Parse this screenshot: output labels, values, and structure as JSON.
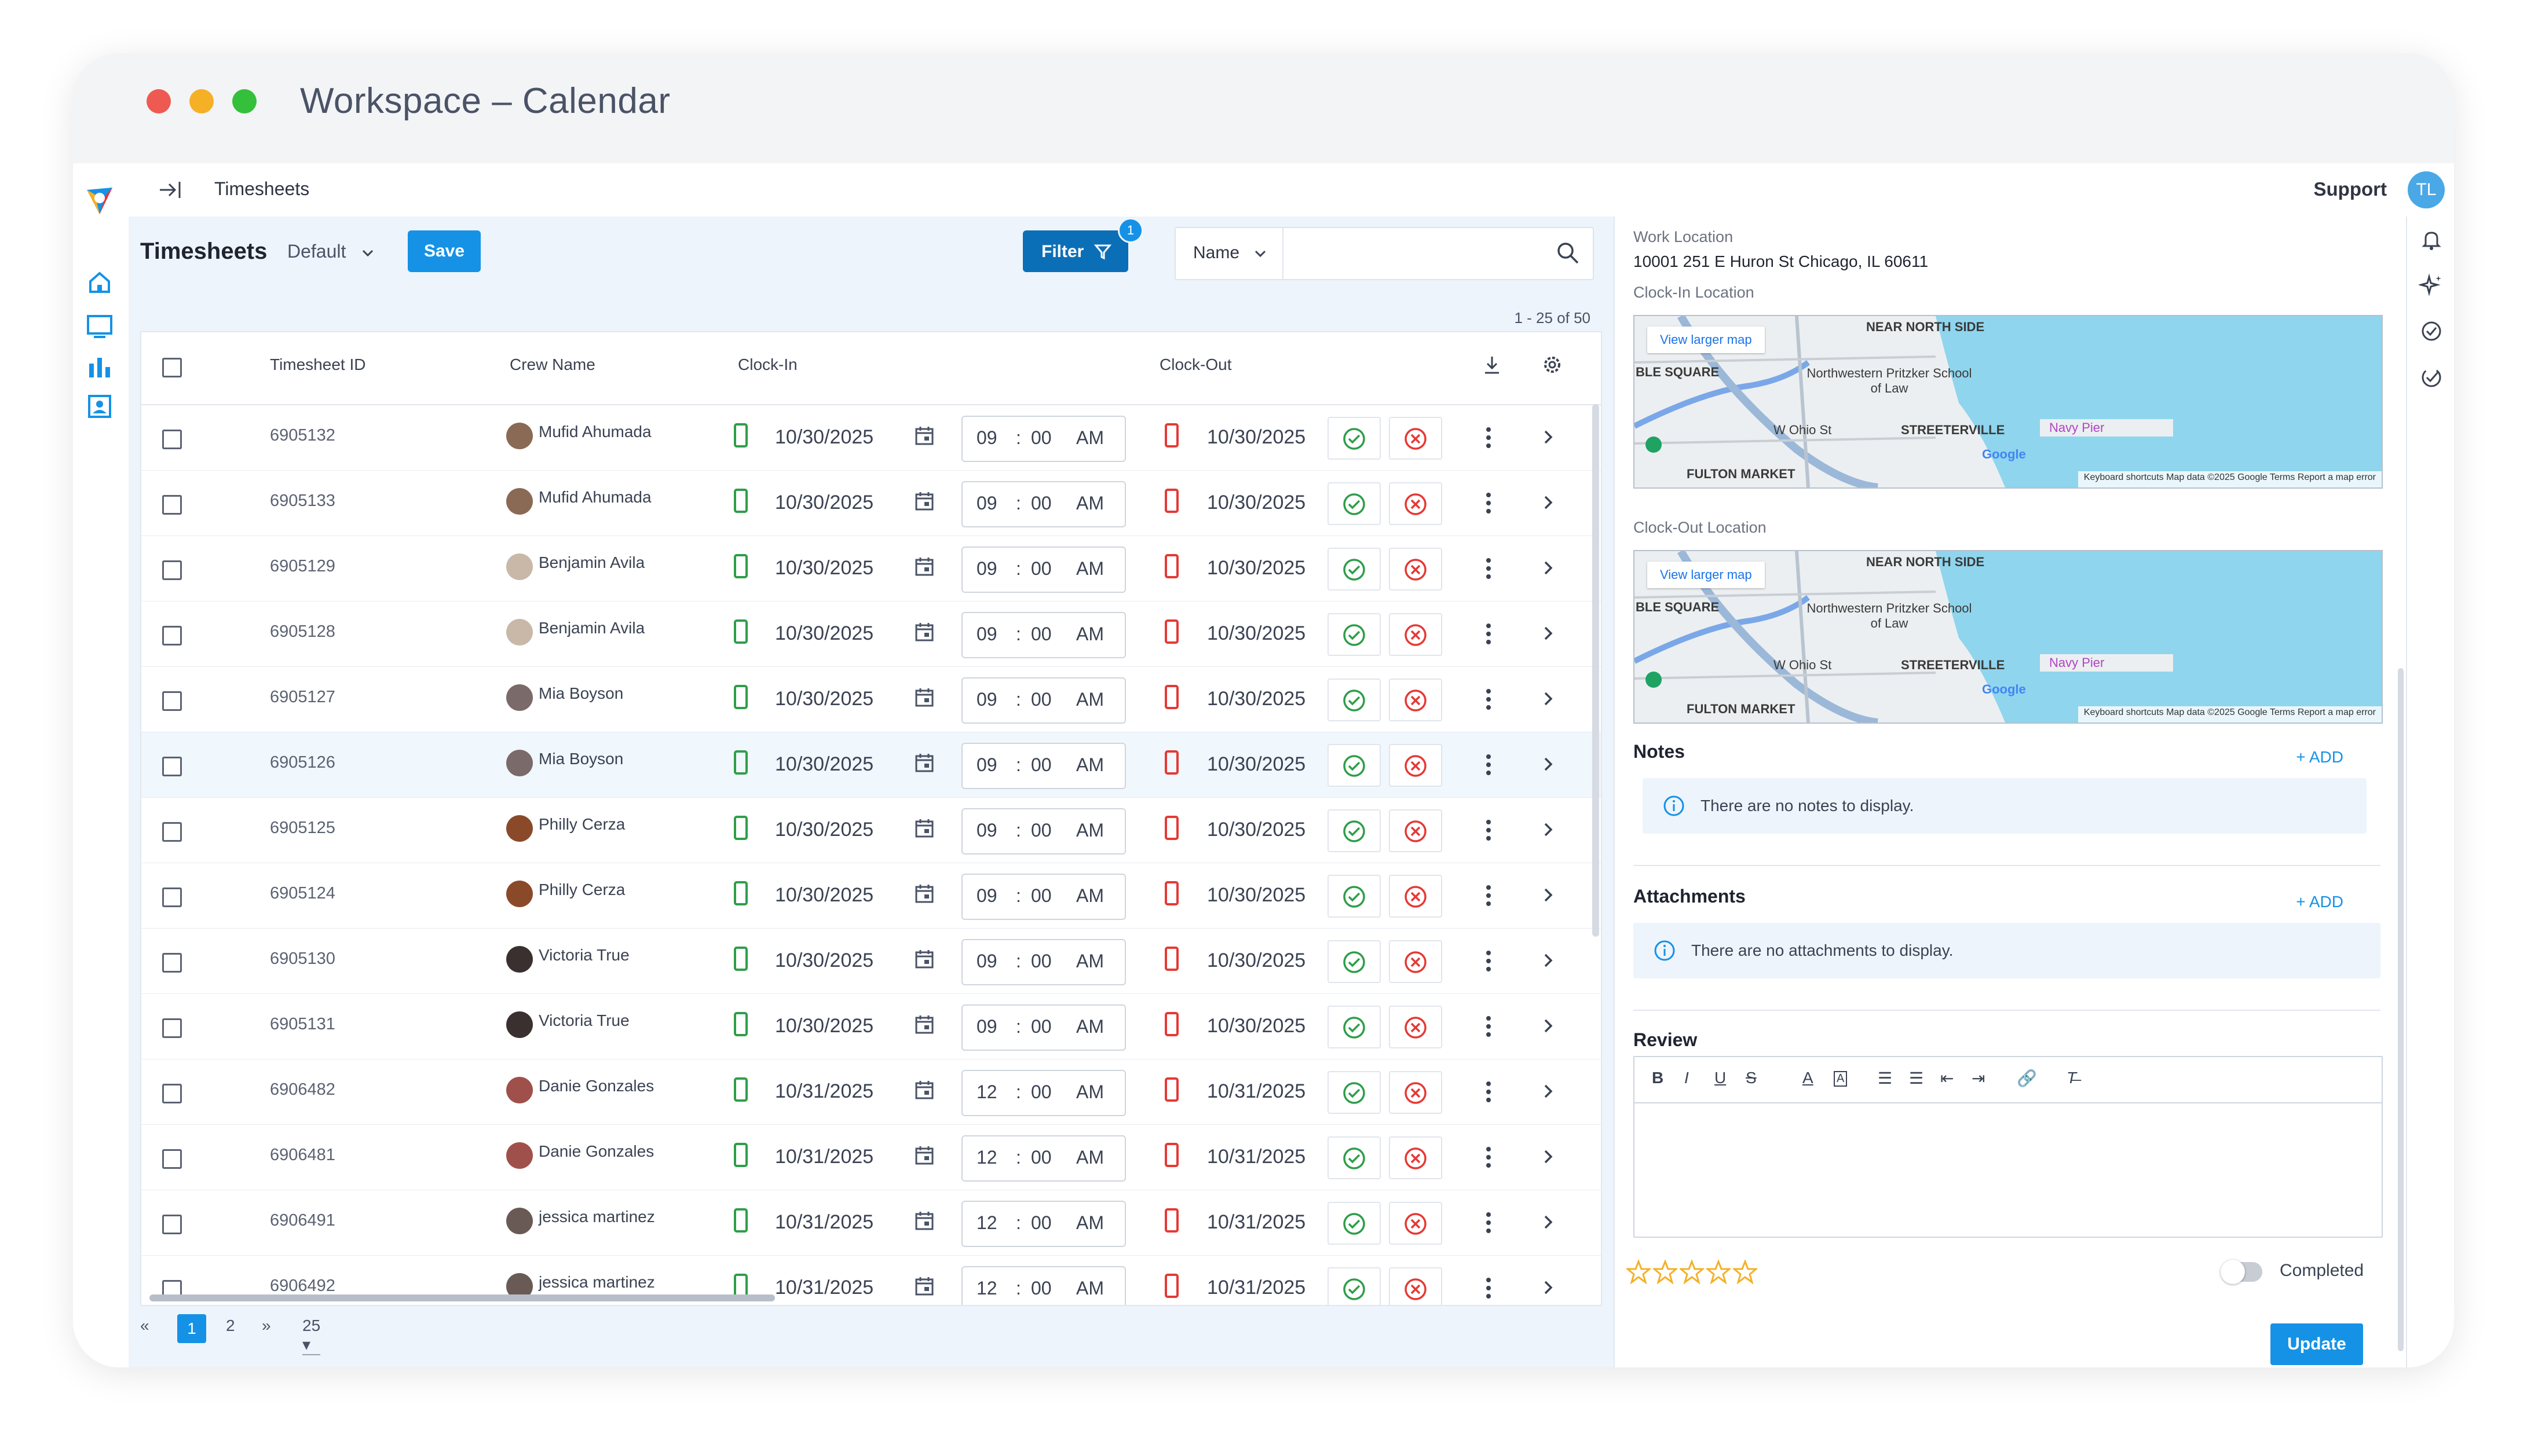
{
  "window": {
    "title": "Workspace – Calendar"
  },
  "topbar": {
    "breadcrumb": "Timesheets",
    "support": "Support",
    "avatar_initials": "TL"
  },
  "toolbar": {
    "title": "Timesheets",
    "view": "Default",
    "save_label": "Save",
    "filter_label": "Filter",
    "filter_count": "1",
    "search_field": "Name",
    "search_placeholder": "",
    "range_text": "1 - 25 of 50"
  },
  "table": {
    "headers": {
      "id": "Timesheet ID",
      "crew": "Crew Name",
      "clock_in": "Clock-In",
      "clock_out": "Clock-Out"
    },
    "rows": [
      {
        "id": "6905132",
        "crew": "Mufid Ahumada",
        "in_date": "10/30/2025",
        "hh": "09",
        "mm": "00",
        "ampm": "AM",
        "out_date": "10/30/2025",
        "av": "#8a6a55"
      },
      {
        "id": "6905133",
        "crew": "Mufid Ahumada",
        "in_date": "10/30/2025",
        "hh": "09",
        "mm": "00",
        "ampm": "AM",
        "out_date": "10/30/2025",
        "av": "#8a6a55"
      },
      {
        "id": "6905129",
        "crew": "Benjamin Avila",
        "in_date": "10/30/2025",
        "hh": "09",
        "mm": "00",
        "ampm": "AM",
        "out_date": "10/30/2025",
        "av": "#c9b8a8"
      },
      {
        "id": "6905128",
        "crew": "Benjamin Avila",
        "in_date": "10/30/2025",
        "hh": "09",
        "mm": "00",
        "ampm": "AM",
        "out_date": "10/30/2025",
        "av": "#c9b8a8"
      },
      {
        "id": "6905127",
        "crew": "Mia Boyson",
        "in_date": "10/30/2025",
        "hh": "09",
        "mm": "00",
        "ampm": "AM",
        "out_date": "10/30/2025",
        "av": "#7b6a6a"
      },
      {
        "id": "6905126",
        "crew": "Mia Boyson",
        "in_date": "10/30/2025",
        "hh": "09",
        "mm": "00",
        "ampm": "AM",
        "out_date": "10/30/2025",
        "av": "#7b6a6a"
      },
      {
        "id": "6905125",
        "crew": "Philly Cerza",
        "in_date": "10/30/2025",
        "hh": "09",
        "mm": "00",
        "ampm": "AM",
        "out_date": "10/30/2025",
        "av": "#8a4a2a"
      },
      {
        "id": "6905124",
        "crew": "Philly Cerza",
        "in_date": "10/30/2025",
        "hh": "09",
        "mm": "00",
        "ampm": "AM",
        "out_date": "10/30/2025",
        "av": "#8a4a2a"
      },
      {
        "id": "6905130",
        "crew": "Victoria True",
        "in_date": "10/30/2025",
        "hh": "09",
        "mm": "00",
        "ampm": "AM",
        "out_date": "10/30/2025",
        "av": "#3a3030"
      },
      {
        "id": "6905131",
        "crew": "Victoria True",
        "in_date": "10/30/2025",
        "hh": "09",
        "mm": "00",
        "ampm": "AM",
        "out_date": "10/30/2025",
        "av": "#3a3030"
      },
      {
        "id": "6906482",
        "crew": "Danie Gonzales",
        "in_date": "10/31/2025",
        "hh": "12",
        "mm": "00",
        "ampm": "AM",
        "out_date": "10/31/2025",
        "av": "#a0504a"
      },
      {
        "id": "6906481",
        "crew": "Danie Gonzales",
        "in_date": "10/31/2025",
        "hh": "12",
        "mm": "00",
        "ampm": "AM",
        "out_date": "10/31/2025",
        "av": "#a0504a"
      },
      {
        "id": "6906491",
        "crew": "jessica martinez",
        "in_date": "10/31/2025",
        "hh": "12",
        "mm": "00",
        "ampm": "AM",
        "out_date": "10/31/2025",
        "av": "#6a5a55"
      },
      {
        "id": "6906492",
        "crew": "jessica martinez",
        "in_date": "10/31/2025",
        "hh": "12",
        "mm": "00",
        "ampm": "AM",
        "out_date": "10/31/2025",
        "av": "#6a5a55"
      }
    ]
  },
  "pagination": {
    "current": "1",
    "next": "2",
    "page_size": "25"
  },
  "details": {
    "work_location_label": "Work Location",
    "work_location": "10001 251 E Huron St Chicago, IL 60611",
    "clock_in_label": "Clock-In Location",
    "clock_out_label": "Clock-Out Location",
    "map": {
      "link": "View larger map",
      "labels": [
        "NEAR NORTH SIDE",
        "BLE SQUARE",
        "Northwestern Pritzker School of Law",
        "W Ohio St",
        "STREETERVILLE",
        "Navy Pier",
        "FULTON MARKET",
        "Google"
      ],
      "footer": "Keyboard shortcuts   Map data ©2025 Google   Terms   Report a map error"
    },
    "notes_title": "Notes",
    "notes_add": "ADD",
    "notes_empty": "There are no notes to display.",
    "attachments_title": "Attachments",
    "attachments_add": "ADD",
    "attachments_empty": "There are no attachments to display.",
    "review_title": "Review",
    "completed_label": "Completed",
    "update_label": "Update"
  },
  "colors": {
    "accent": "#1592e6",
    "filter": "#0b6fb8",
    "ok": "#2e9e4a",
    "danger": "#e53935"
  }
}
